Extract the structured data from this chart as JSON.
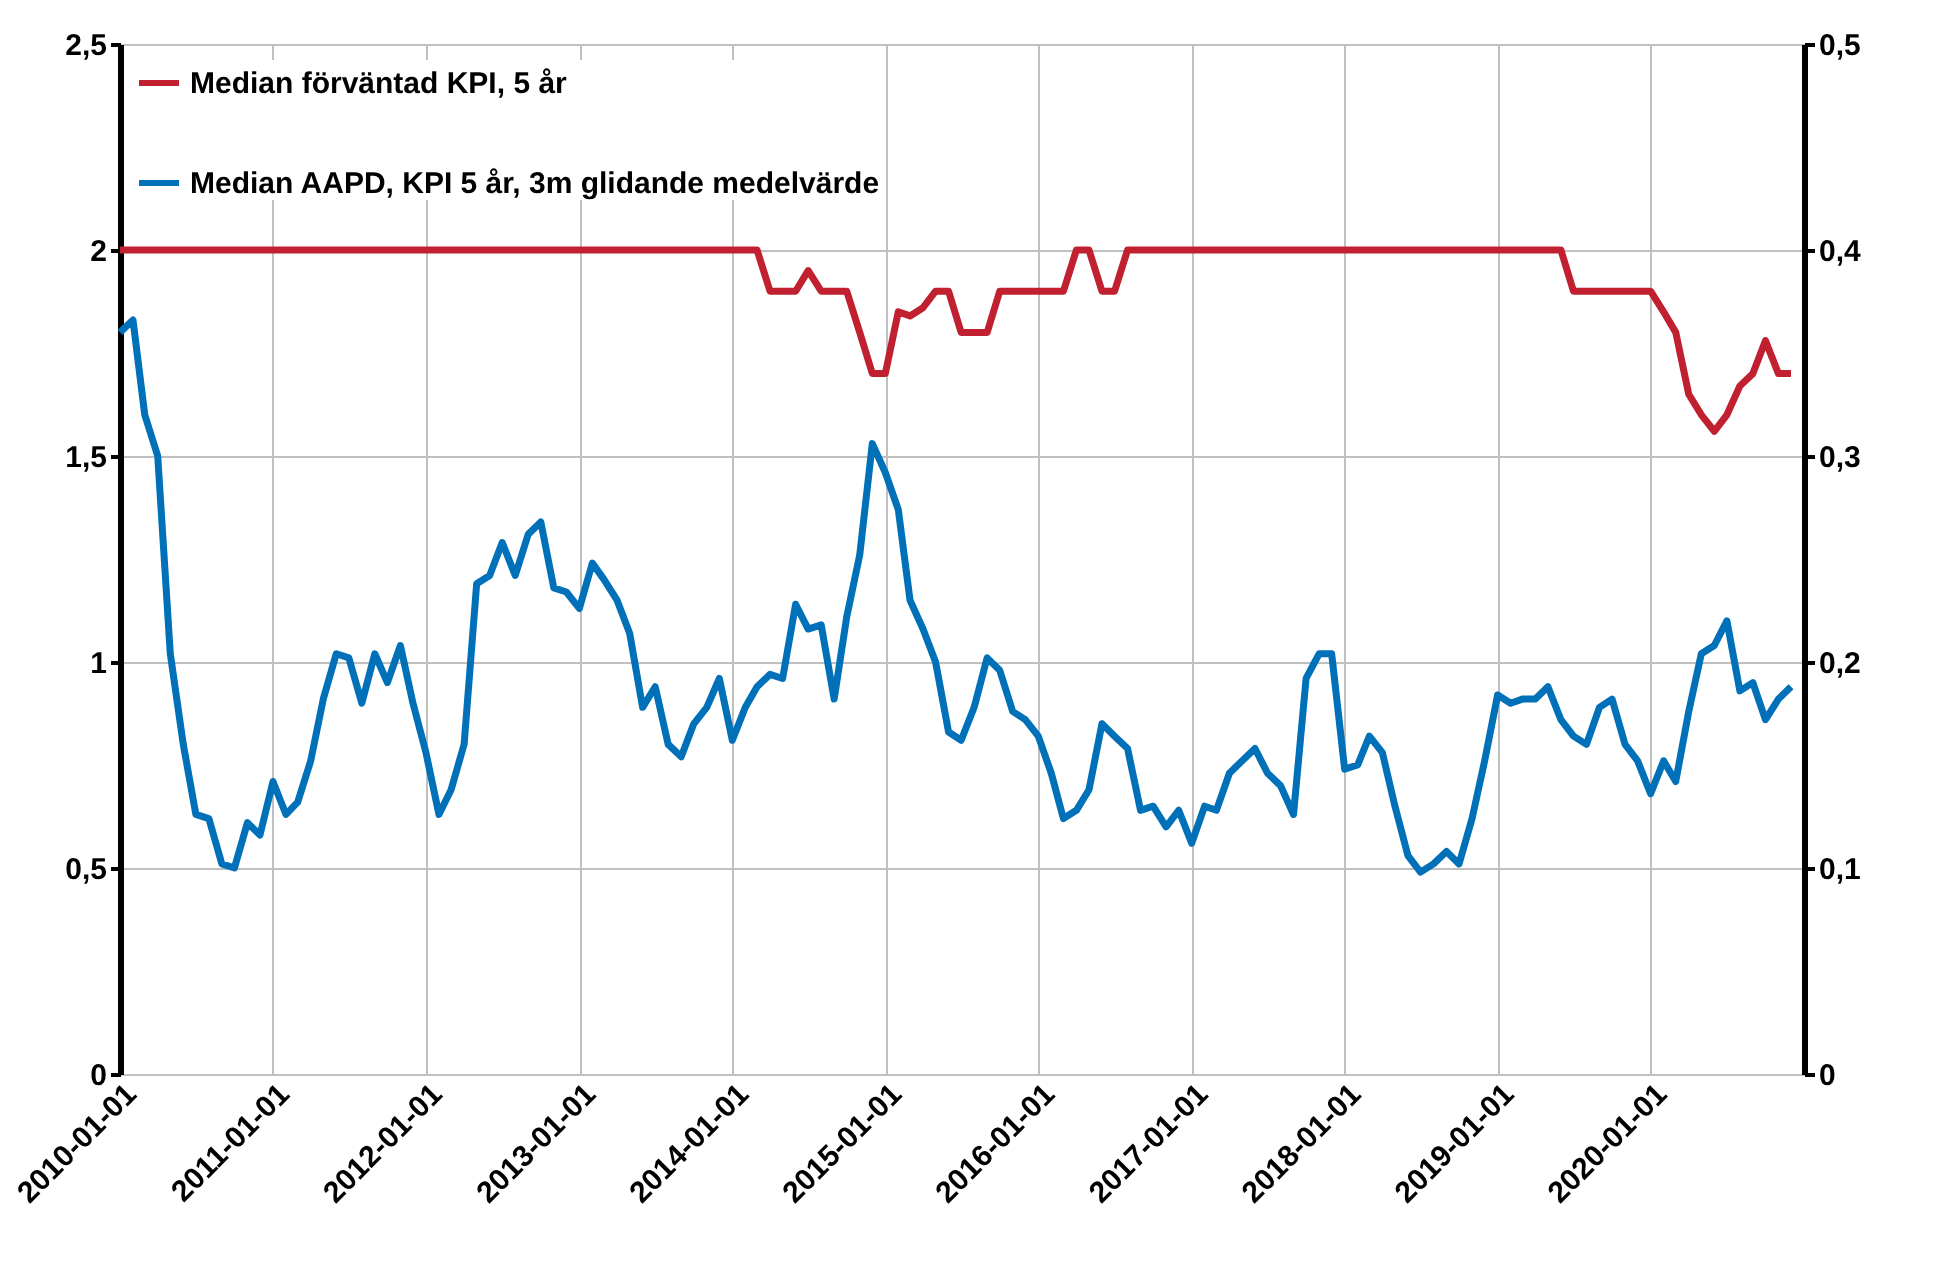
{
  "chart_data": {
    "type": "line",
    "legend": "top left",
    "grid": true,
    "line_style": "solid",
    "marker": "none",
    "x": [
      "2010-01",
      "2010-02",
      "2010-03",
      "2010-04",
      "2010-05",
      "2010-06",
      "2010-07",
      "2010-08",
      "2010-09",
      "2010-10",
      "2010-11",
      "2010-12",
      "2011-01",
      "2011-02",
      "2011-03",
      "2011-04",
      "2011-05",
      "2011-06",
      "2011-07",
      "2011-08",
      "2011-09",
      "2011-10",
      "2011-11",
      "2011-12",
      "2012-01",
      "2012-02",
      "2012-03",
      "2012-04",
      "2012-05",
      "2012-06",
      "2012-07",
      "2012-08",
      "2012-09",
      "2012-10",
      "2012-11",
      "2012-12",
      "2013-01",
      "2013-02",
      "2013-03",
      "2013-04",
      "2013-05",
      "2013-06",
      "2013-07",
      "2013-08",
      "2013-09",
      "2013-10",
      "2013-11",
      "2013-12",
      "2014-01",
      "2014-02",
      "2014-03",
      "2014-04",
      "2014-05",
      "2014-06",
      "2014-07",
      "2014-08",
      "2014-09",
      "2014-10",
      "2014-11",
      "2014-12",
      "2015-01",
      "2015-02",
      "2015-03",
      "2015-04",
      "2015-05",
      "2015-06",
      "2015-07",
      "2015-08",
      "2015-09",
      "2015-10",
      "2015-11",
      "2015-12",
      "2016-01",
      "2016-02",
      "2016-03",
      "2016-04",
      "2016-05",
      "2016-06",
      "2016-07",
      "2016-08",
      "2016-09",
      "2016-10",
      "2016-11",
      "2016-12",
      "2017-01",
      "2017-02",
      "2017-03",
      "2017-04",
      "2017-05",
      "2017-06",
      "2017-07",
      "2017-08",
      "2017-09",
      "2017-10",
      "2017-11",
      "2017-12",
      "2018-01",
      "2018-02",
      "2018-03",
      "2018-04",
      "2018-05",
      "2018-06",
      "2018-07",
      "2018-08",
      "2018-09",
      "2018-10",
      "2018-11",
      "2018-12",
      "2019-01",
      "2019-02",
      "2019-03",
      "2019-04",
      "2019-05",
      "2019-06",
      "2019-07",
      "2019-08",
      "2019-09",
      "2019-10",
      "2019-11",
      "2019-12",
      "2020-01",
      "2020-02",
      "2020-03",
      "2020-04",
      "2020-05",
      "2020-06",
      "2020-07",
      "2020-08",
      "2020-09",
      "2020-10",
      "2020-11",
      "2020-12"
    ],
    "series": [
      {
        "name": "Median förväntad KPI, 5 år",
        "color": "#c0202f",
        "values": [
          2,
          2,
          2,
          2,
          2,
          2,
          2,
          2,
          2,
          2,
          2,
          2,
          2,
          2,
          2,
          2,
          2,
          2,
          2,
          2,
          2,
          2,
          2,
          2,
          2,
          2,
          2,
          2,
          2,
          2,
          2,
          2,
          2,
          2,
          2,
          2,
          2,
          2,
          2,
          2,
          2,
          2,
          2,
          2,
          2,
          2,
          2,
          2,
          2,
          2,
          2,
          1.9,
          1.9,
          1.9,
          1.95,
          1.9,
          1.9,
          1.9,
          1.8,
          1.7,
          1.7,
          1.85,
          1.84,
          1.86,
          1.9,
          1.9,
          1.8,
          1.8,
          1.8,
          1.9,
          1.9,
          1.9,
          1.9,
          1.9,
          1.9,
          2,
          2,
          1.9,
          1.9,
          2,
          2,
          2,
          2,
          2,
          2,
          2,
          2,
          2,
          2,
          2,
          2,
          2,
          2,
          2,
          2,
          2,
          2,
          2,
          2,
          2,
          2,
          2,
          2,
          2,
          2,
          2,
          2,
          2,
          2,
          2,
          2,
          2,
          2,
          2,
          1.9,
          1.9,
          1.9,
          1.9,
          1.9,
          1.9,
          1.9,
          1.85,
          1.8,
          1.65,
          1.6,
          1.56,
          1.6,
          1.67,
          1.7,
          1.78,
          1.7,
          1.7
        ]
      },
      {
        "name": "Median AAPD, KPI 5 år, 3m glidande medelvärde",
        "color": "#0070b8",
        "axis": "y2",
        "values": [
          0.36,
          0.366,
          0.32,
          0.3,
          0.204,
          0.16,
          0.126,
          0.124,
          0.102,
          0.1,
          0.122,
          0.116,
          0.142,
          0.126,
          0.132,
          0.152,
          0.182,
          0.204,
          0.202,
          0.18,
          0.204,
          0.19,
          0.208,
          0.18,
          0.156,
          0.126,
          0.138,
          0.16,
          0.238,
          0.242,
          0.258,
          0.242,
          0.262,
          0.268,
          0.236,
          0.234,
          0.226,
          0.248,
          0.24,
          0.23,
          0.214,
          0.178,
          0.188,
          0.16,
          0.154,
          0.17,
          0.178,
          0.192,
          0.162,
          0.178,
          0.188,
          0.194,
          0.192,
          0.228,
          0.216,
          0.218,
          0.182,
          0.222,
          0.252,
          0.306,
          0.292,
          0.274,
          0.23,
          0.216,
          0.2,
          0.166,
          0.162,
          0.178,
          0.202,
          0.196,
          0.176,
          0.172,
          0.164,
          0.146,
          0.124,
          0.128,
          0.138,
          0.17,
          0.164,
          0.158,
          0.128,
          0.13,
          0.12,
          0.128,
          0.112,
          0.13,
          0.128,
          0.146,
          0.152,
          0.158,
          0.146,
          0.14,
          0.126,
          0.192,
          0.204,
          0.204,
          0.148,
          0.15,
          0.164,
          0.156,
          0.13,
          0.106,
          0.098,
          0.102,
          0.108,
          0.102,
          0.124,
          0.152,
          0.184,
          0.18,
          0.182,
          0.182,
          0.188,
          0.172,
          0.164,
          0.16,
          0.178,
          0.182,
          0.16,
          0.152,
          0.136,
          0.152,
          0.142,
          0.176,
          0.204,
          0.208,
          0.22,
          0.186,
          0.19,
          0.172,
          0.182,
          0.188
        ]
      }
    ],
    "xlim": [
      "2010-01-01",
      "2021-01-01"
    ],
    "xticks": [
      "2010-01-01",
      "2011-01-01",
      "2012-01-01",
      "2013-01-01",
      "2014-01-01",
      "2015-01-01",
      "2016-01-01",
      "2017-01-01",
      "2018-01-01",
      "2019-01-01",
      "2020-01-01"
    ],
    "ylim": [
      0,
      2.5
    ],
    "yticks": [
      0,
      {
        "value": 0.5,
        "label": "0,5"
      },
      1,
      {
        "value": 1.5,
        "label": "1,5"
      },
      2,
      {
        "value": 2.5,
        "label": "2,5"
      }
    ],
    "y2lim": [
      0,
      0.5
    ],
    "y2ticks": [
      0,
      {
        "value": 0.1,
        "label": "0,1"
      },
      {
        "value": 0.2,
        "label": "0,2"
      },
      {
        "value": 0.3,
        "label": "0,3"
      },
      {
        "value": 0.4,
        "label": "0,4"
      },
      {
        "value": 0.5,
        "label": "0,5"
      }
    ]
  }
}
